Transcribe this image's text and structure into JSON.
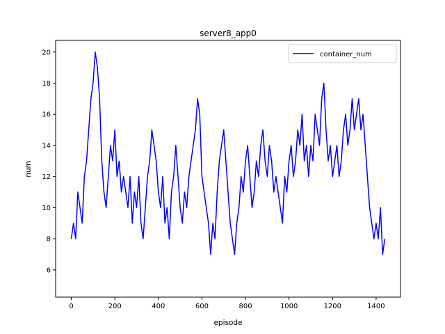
{
  "chart_data": {
    "type": "line",
    "title": "server8_app0",
    "xlabel": "episode",
    "ylabel": "num",
    "xlim": [
      -72,
      1512
    ],
    "ylim": [
      4.25,
      20.75
    ],
    "xticks": [
      0,
      200,
      400,
      600,
      800,
      1000,
      1200,
      1400
    ],
    "yticks": [
      6,
      8,
      10,
      12,
      14,
      16,
      18,
      20
    ],
    "grid": false,
    "legend_position": "top-right",
    "colors": {
      "series": "#0000ff"
    },
    "series": [
      {
        "name": "container_num",
        "color": "#0000ff",
        "x": [
          0,
          10,
          20,
          30,
          40,
          50,
          60,
          70,
          80,
          90,
          100,
          110,
          120,
          130,
          140,
          150,
          160,
          170,
          180,
          190,
          200,
          210,
          220,
          230,
          240,
          250,
          260,
          270,
          280,
          290,
          300,
          310,
          320,
          330,
          340,
          350,
          360,
          370,
          380,
          390,
          400,
          410,
          420,
          430,
          440,
          450,
          460,
          470,
          480,
          490,
          500,
          510,
          520,
          530,
          540,
          550,
          560,
          570,
          580,
          590,
          600,
          610,
          620,
          630,
          640,
          650,
          660,
          670,
          680,
          690,
          700,
          710,
          720,
          730,
          740,
          750,
          760,
          770,
          780,
          790,
          800,
          810,
          820,
          830,
          840,
          850,
          860,
          870,
          880,
          890,
          900,
          910,
          920,
          930,
          940,
          950,
          960,
          970,
          980,
          990,
          1000,
          1010,
          1020,
          1030,
          1040,
          1050,
          1060,
          1070,
          1080,
          1090,
          1100,
          1110,
          1120,
          1130,
          1140,
          1150,
          1160,
          1170,
          1180,
          1190,
          1200,
          1210,
          1220,
          1230,
          1240,
          1250,
          1260,
          1270,
          1280,
          1290,
          1300,
          1310,
          1320,
          1330,
          1340,
          1350,
          1360,
          1370,
          1380,
          1390,
          1400,
          1410,
          1420,
          1430,
          1440
        ],
        "y": [
          8,
          9,
          8,
          11,
          10,
          9,
          12,
          13,
          15,
          17,
          18,
          20,
          19,
          17,
          13,
          11,
          10,
          12,
          14,
          13,
          15,
          12,
          13,
          11,
          12,
          11,
          10,
          12,
          9,
          11,
          10,
          12,
          9,
          8,
          10,
          12,
          13,
          15,
          14,
          13,
          11,
          10,
          12,
          9,
          10,
          8,
          11,
          12,
          14,
          12,
          10,
          9,
          11,
          10,
          12,
          13,
          14,
          15,
          17,
          16,
          12,
          11,
          10,
          9,
          7,
          9,
          8,
          11,
          13,
          14,
          15,
          13,
          11,
          9,
          8,
          7,
          9,
          10,
          12,
          11,
          13,
          14,
          12,
          10,
          11,
          13,
          12,
          14,
          15,
          13,
          12,
          14,
          13,
          11,
          12,
          11,
          10,
          9,
          12,
          11,
          13,
          14,
          12,
          13,
          15,
          14,
          16,
          13,
          14,
          12,
          14,
          13,
          16,
          15,
          14,
          17,
          18,
          15,
          13,
          14,
          12,
          13,
          14,
          12,
          13,
          15,
          16,
          14,
          15,
          17,
          15,
          16,
          17,
          15,
          16,
          14,
          12,
          10,
          9,
          8,
          9,
          8,
          10,
          7,
          8
        ]
      }
    ]
  }
}
